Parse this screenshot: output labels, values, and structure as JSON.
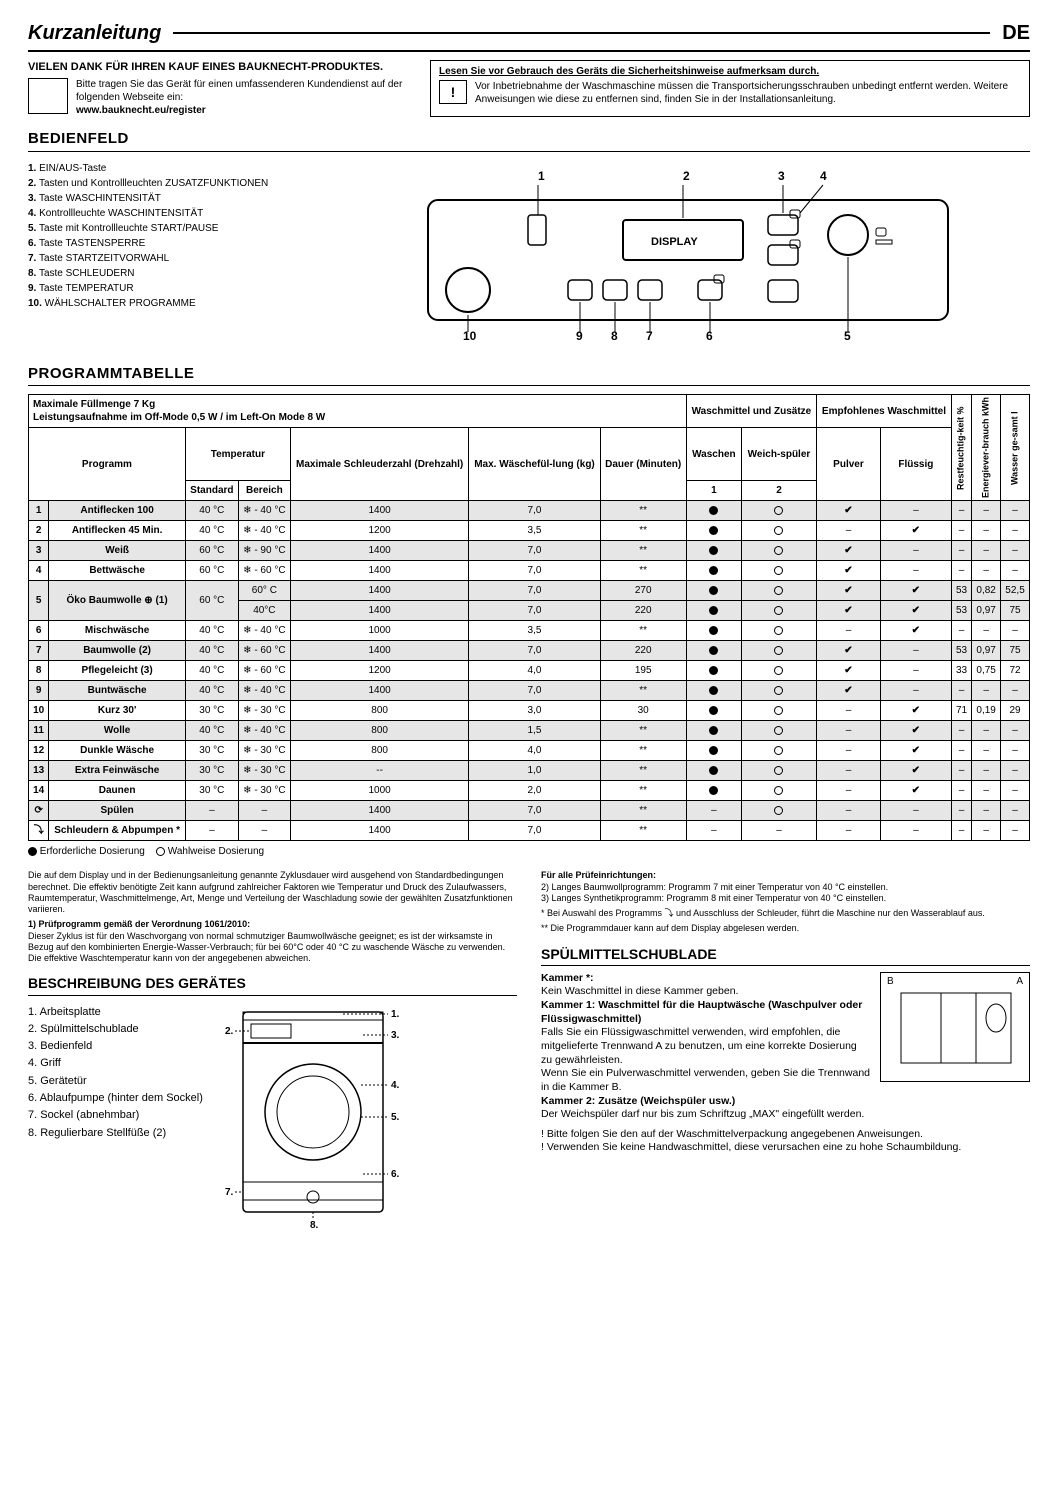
{
  "header": {
    "title": "Kurzanleitung",
    "lang": "DE"
  },
  "thanks": {
    "line1": "VIELEN DANK FÜR IHREN KAUF EINES BAUKNECHT-PRODUKTES.",
    "body": "Bitte tragen Sie das Gerät für einen umfassenderen Kundendienst auf der folgenden Webseite ein:",
    "url": "www.bauknecht.eu/register"
  },
  "safety": {
    "title": "Lesen Sie vor Gebrauch des Geräts die Sicherheitshinweise aufmerksam durch.",
    "body": "Vor Inbetriebnahme der Waschmaschine müssen die Transportsicherungsschrauben unbedingt entfernt werden. Weitere Anweisungen wie diese zu entfernen sind, finden Sie in der Installationsanleitung."
  },
  "sections": {
    "panel": "BEDIENFELD",
    "programs": "PROGRAMMTABELLE",
    "description": "BESCHREIBUNG DES GERÄTES",
    "drawer": "SPÜLMITTELSCHUBLADE"
  },
  "panel_items": [
    "EIN/AUS-Taste",
    "Tasten und Kontrollleuchten ZUSATZFUNKTIONEN",
    "Taste WASCHINTENSITÄT",
    "Kontrollleuchte WASCHINTENSITÄT",
    "Taste mit Kontrollleuchte START/PAUSE",
    "Taste TASTENSPERRE",
    "Taste STARTZEITVORWAHL",
    "Taste SCHLEUDERN",
    "Taste TEMPERATUR",
    "WÄHLSCHALTER PROGRAMME"
  ],
  "panel_display_label": "DISPLAY",
  "table_meta": {
    "caption1": "Maximale Füllmenge 7 Kg",
    "caption2": "Leistungsaufnahme im Off-Mode 0,5 W / im Left-On Mode 8 W",
    "col_program": "Programm",
    "col_temp": "Temperatur",
    "col_temp_std": "Standard",
    "col_temp_range": "Bereich",
    "col_spin": "Maximale Schleuderzahl (Drehzahl)",
    "col_load": "Max. Wäschefül-lung (kg)",
    "col_dur": "Dauer (Minuten)",
    "col_det_group": "Waschmittel und Zusätze",
    "col_det_wash": "Waschen",
    "col_det_soft": "Weich-spüler",
    "col_rec_group": "Empfohlenes Waschmittel",
    "col_rec_powder": "Pulver",
    "col_rec_liquid": "Flüssig",
    "col_humid": "Restfeuchtig-keit %",
    "col_energy": "Energiever-brauch kWh",
    "col_water": "Wasser ge-samt l",
    "sub1": "1",
    "sub2": "2"
  },
  "programs": [
    {
      "n": "1",
      "name": "Antiflecken 100",
      "ts": "40 °C",
      "tr": "❄ - 40 °C",
      "spin": "1400",
      "load": "7,0",
      "dur": "**",
      "wash": "●",
      "soft": "○",
      "pwd": "✔",
      "liq": "–",
      "hum": "–",
      "en": "–",
      "wat": "–",
      "shade": true
    },
    {
      "n": "2",
      "name": "Antiflecken 45 Min.",
      "ts": "40 °C",
      "tr": "❄ - 40 °C",
      "spin": "1200",
      "load": "3,5",
      "dur": "**",
      "wash": "●",
      "soft": "○",
      "pwd": "–",
      "liq": "✔",
      "hum": "–",
      "en": "–",
      "wat": "–",
      "shade": false
    },
    {
      "n": "3",
      "name": "Weiß",
      "ts": "60 °C",
      "tr": "❄ - 90 °C",
      "spin": "1400",
      "load": "7,0",
      "dur": "**",
      "wash": "●",
      "soft": "○",
      "pwd": "✔",
      "liq": "–",
      "hum": "–",
      "en": "–",
      "wat": "–",
      "shade": true
    },
    {
      "n": "4",
      "name": "Bettwäsche",
      "ts": "60 °C",
      "tr": "❄ - 60 °C",
      "spin": "1400",
      "load": "7,0",
      "dur": "**",
      "wash": "●",
      "soft": "○",
      "pwd": "✔",
      "liq": "–",
      "hum": "–",
      "en": "–",
      "wat": "–",
      "shade": false
    },
    {
      "n": "5a",
      "name": "Öko Baumwolle ⊕ (1)",
      "ts": "60 °C",
      "tr": "60° C",
      "spin": "1400",
      "load": "7,0",
      "dur": "270",
      "wash": "●",
      "soft": "○",
      "pwd": "✔",
      "liq": "✔",
      "hum": "53",
      "en": "0,82",
      "wat": "52,5",
      "shade": true,
      "rowspan_name": 2,
      "rowspan_ts": 2
    },
    {
      "n": "5b",
      "tr": "40°C",
      "spin": "1400",
      "load": "7,0",
      "dur": "220",
      "wash": "●",
      "soft": "○",
      "pwd": "✔",
      "liq": "✔",
      "hum": "53",
      "en": "0,97",
      "wat": "75",
      "shade": true,
      "skip_n": true,
      "skip_name": true,
      "skip_ts": true
    },
    {
      "n": "6",
      "name": "Mischwäsche",
      "ts": "40 °C",
      "tr": "❄ - 40 °C",
      "spin": "1000",
      "load": "3,5",
      "dur": "**",
      "wash": "●",
      "soft": "○",
      "pwd": "–",
      "liq": "✔",
      "hum": "–",
      "en": "–",
      "wat": "–",
      "shade": false
    },
    {
      "n": "7",
      "name": "Baumwolle (2)",
      "ts": "40 °C",
      "tr": "❄ - 60 °C",
      "spin": "1400",
      "load": "7,0",
      "dur": "220",
      "wash": "●",
      "soft": "○",
      "pwd": "✔",
      "liq": "–",
      "hum": "53",
      "en": "0,97",
      "wat": "75",
      "shade": true
    },
    {
      "n": "8",
      "name": "Pflegeleicht (3)",
      "ts": "40 °C",
      "tr": "❄ - 60 °C",
      "spin": "1200",
      "load": "4,0",
      "dur": "195",
      "wash": "●",
      "soft": "○",
      "pwd": "✔",
      "liq": "–",
      "hum": "33",
      "en": "0,75",
      "wat": "72",
      "shade": false
    },
    {
      "n": "9",
      "name": "Buntwäsche",
      "ts": "40 °C",
      "tr": "❄ - 40 °C",
      "spin": "1400",
      "load": "7,0",
      "dur": "**",
      "wash": "●",
      "soft": "○",
      "pwd": "✔",
      "liq": "–",
      "hum": "–",
      "en": "–",
      "wat": "–",
      "shade": true
    },
    {
      "n": "10",
      "name": "Kurz 30'",
      "ts": "30 °C",
      "tr": "❄ - 30 °C",
      "spin": "800",
      "load": "3,0",
      "dur": "30",
      "wash": "●",
      "soft": "○",
      "pwd": "–",
      "liq": "✔",
      "hum": "71",
      "en": "0,19",
      "wat": "29",
      "shade": false
    },
    {
      "n": "11",
      "name": "Wolle",
      "ts": "40 °C",
      "tr": "❄ - 40 °C",
      "spin": "800",
      "load": "1,5",
      "dur": "**",
      "wash": "●",
      "soft": "○",
      "pwd": "–",
      "liq": "✔",
      "hum": "–",
      "en": "–",
      "wat": "–",
      "shade": true
    },
    {
      "n": "12",
      "name": "Dunkle Wäsche",
      "ts": "30 °C",
      "tr": "❄ - 30 °C",
      "spin": "800",
      "load": "4,0",
      "dur": "**",
      "wash": "●",
      "soft": "○",
      "pwd": "–",
      "liq": "✔",
      "hum": "–",
      "en": "–",
      "wat": "–",
      "shade": false
    },
    {
      "n": "13",
      "name": "Extra Feinwäsche",
      "ts": "30 °C",
      "tr": "❄ - 30 °C",
      "spin": "--",
      "load": "1,0",
      "dur": "**",
      "wash": "●",
      "soft": "○",
      "pwd": "–",
      "liq": "✔",
      "hum": "–",
      "en": "–",
      "wat": "–",
      "shade": true
    },
    {
      "n": "14",
      "name": "Daunen",
      "ts": "30 °C",
      "tr": "❄ - 30 °C",
      "spin": "1000",
      "load": "2,0",
      "dur": "**",
      "wash": "●",
      "soft": "○",
      "pwd": "–",
      "liq": "✔",
      "hum": "–",
      "en": "–",
      "wat": "–",
      "shade": false
    },
    {
      "n": "⟳",
      "name": "Spülen",
      "ts": "–",
      "tr": "–",
      "spin": "1400",
      "load": "7,0",
      "dur": "**",
      "wash": "–",
      "soft": "○",
      "pwd": "–",
      "liq": "–",
      "hum": "–",
      "en": "–",
      "wat": "–",
      "shade": true
    },
    {
      "n": "⤵",
      "name": "Schleudern & Abpumpen *",
      "ts": "–",
      "tr": "–",
      "spin": "1400",
      "load": "7,0",
      "dur": "**",
      "wash": "–",
      "soft": "–",
      "pwd": "–",
      "liq": "–",
      "hum": "–",
      "en": "–",
      "wat": "–",
      "shade": false
    }
  ],
  "legend": {
    "req": "Erforderliche Dosierung",
    "opt": "Wahlweise Dosierung"
  },
  "notes_left": {
    "p1": "Die auf dem Display und in der Bedienungsanleitung genannte Zyklusdauer wird ausgehend von Standardbedingungen berechnet. Die effektiv benötigte Zeit kann aufgrund zahlreicher Faktoren wie Temperatur und Druck des Zulaufwassers, Raumtemperatur, Waschmittelmenge, Art, Menge und Verteilung der Waschladung sowie der gewählten Zusatzfunktionen variieren.",
    "h1": "1) Prüfprogramm gemäß der Verordnung 1061/2010:",
    "p2": "Dieser Zyklus ist für den Waschvorgang von normal schmutziger Baumwollwäsche geeignet; es ist der wirksamste in Bezug auf den kombinierten Energie-Wasser-Verbrauch; für bei 60°C oder 40 °C zu waschende Wäsche zu verwenden. Die effektive Waschtemperatur kann von der angegebenen abweichen."
  },
  "notes_right": {
    "h": "Für alle Prüfeinrichtungen:",
    "l2": "2)  Langes Baumwollprogramm: Programm 7 mit einer Temperatur von 40 °C einstellen.",
    "l3": "3)  Langes Synthetikprogramm: Programm 8 mit einer Temperatur von 40 °C einstellen.",
    "star1": "* Bei Auswahl des Programms ⤵ und Ausschluss der Schleuder, führt die Maschine nur den Wasserablauf aus.",
    "star2": "** Die Programmdauer kann auf dem Display abgelesen werden."
  },
  "description_items": [
    "Arbeitsplatte",
    "Spülmittelschublade",
    "Bedienfeld",
    "Griff",
    "Gerätetür",
    "Ablaufpumpe (hinter dem Sockel)",
    "Sockel (abnehmbar)",
    "Regulierbare Stellfüße (2)"
  ],
  "drawer": {
    "k_star_h": "Kammer *:",
    "k_star_b": "Kein Waschmittel in diese Kammer geben.",
    "k1_h": "Kammer 1: Waschmittel für die Hauptwäsche (Waschpulver oder Flüssigwaschmittel)",
    "k1_b": "Falls Sie ein Flüssigwaschmittel verwenden, wird empfohlen, die mitgelieferte Trennwand A zu benutzen, um eine korrekte Dosierung zu gewährleisten.",
    "k1_b2": "Wenn Sie ein Pulverwaschmittel verwenden, geben Sie die Trennwand in die Kammer B.",
    "k2_h": "Kammer 2: Zusätze (Weichspüler usw.)",
    "k2_b": "Der Weichspüler darf nur bis zum Schriftzug „MAX\" eingefüllt werden.",
    "warn1": "! Bitte folgen Sie den auf der Waschmittelverpackung angegebenen Anweisungen.",
    "warn2": "! Verwenden Sie keine Handwaschmittel, diese verursachen eine zu hohe Schaumbildung.",
    "label_a": "A",
    "label_b": "B"
  }
}
